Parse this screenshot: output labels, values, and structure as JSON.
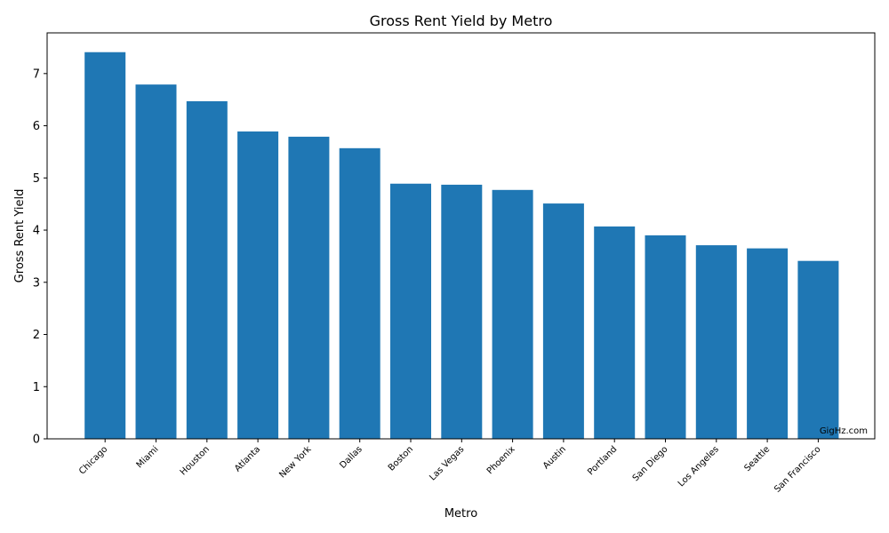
{
  "chart_data": {
    "type": "bar",
    "title": "Gross Rent Yield by Metro",
    "xlabel": "Metro",
    "ylabel": "Gross Rent Yield",
    "categories": [
      "Chicago",
      "Miami",
      "Houston",
      "Atlanta",
      "New York",
      "Dallas",
      "Boston",
      "Las Vegas",
      "Phoenix",
      "Austin",
      "Portland",
      "San Diego",
      "Los Angeles",
      "Seattle",
      "San Francisco"
    ],
    "values": [
      7.41,
      6.79,
      6.47,
      5.89,
      5.79,
      5.57,
      4.89,
      4.87,
      4.77,
      4.51,
      4.07,
      3.9,
      3.71,
      3.65,
      3.41
    ],
    "ylim": [
      0,
      7.78
    ],
    "yticks": [
      0,
      1,
      2,
      3,
      4,
      5,
      6,
      7
    ],
    "bar_color": "#1f77b4",
    "grid": false,
    "watermark": "GigHz.com"
  }
}
